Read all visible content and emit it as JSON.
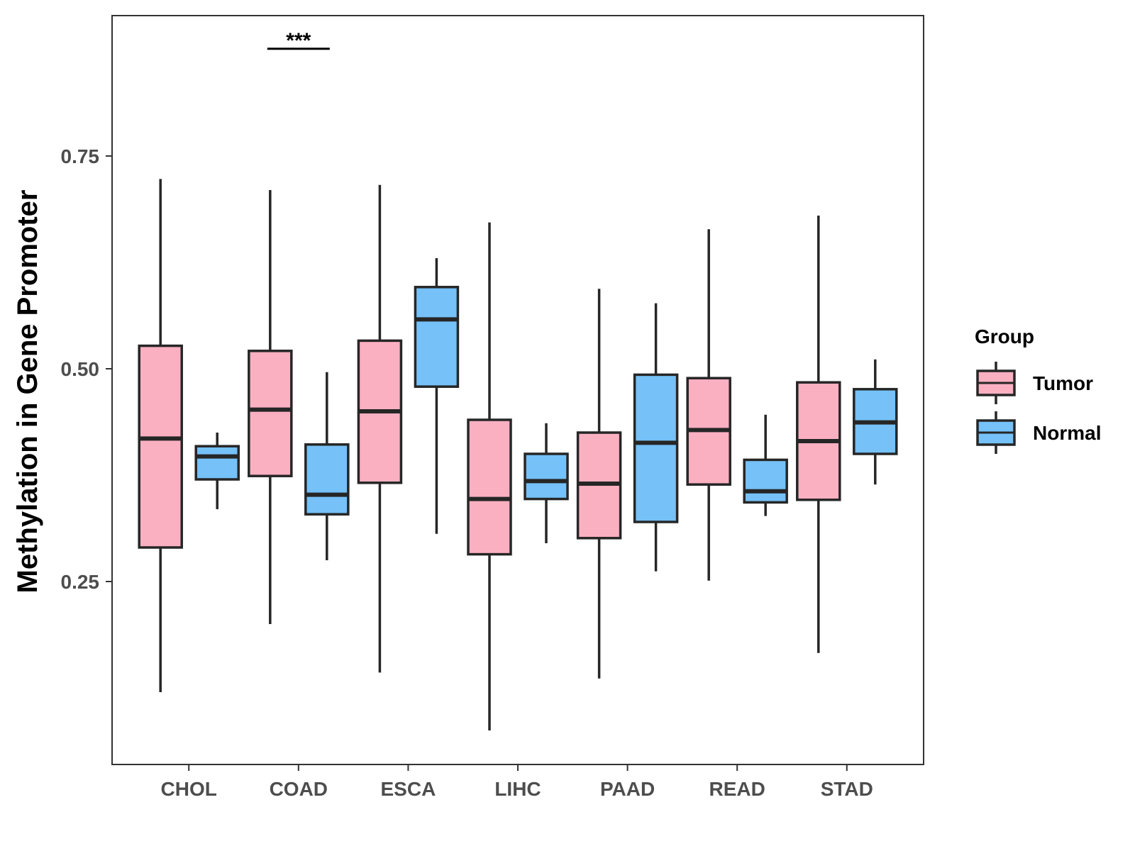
{
  "chart_data": {
    "type": "boxplot",
    "title": "",
    "xlabel": "",
    "ylabel": "Methylation in Gene Promoter",
    "ylim": [
      0.035,
      0.915
    ],
    "yticks": [
      0.25,
      0.5,
      0.75
    ],
    "ytick_labels": [
      "0.25",
      "0.50",
      "0.75"
    ],
    "categories": [
      "CHOL",
      "COAD",
      "ESCA",
      "LIHC",
      "PAAD",
      "READ",
      "STAD"
    ],
    "legend": {
      "title": "Group",
      "position": "right",
      "entries": [
        {
          "name": "Tumor",
          "color": "#FBB0C2"
        },
        {
          "name": "Normal",
          "color": "#75C1F8"
        }
      ]
    },
    "series": [
      {
        "name": "Tumor",
        "color": "#FBB0C2",
        "boxes": [
          {
            "category": "CHOL",
            "min": 0.12,
            "q1": 0.29,
            "median": 0.418,
            "q3": 0.527,
            "max": 0.723
          },
          {
            "category": "COAD",
            "min": 0.2,
            "q1": 0.374,
            "median": 0.452,
            "q3": 0.521,
            "max": 0.71
          },
          {
            "category": "ESCA",
            "min": 0.143,
            "q1": 0.366,
            "median": 0.45,
            "q3": 0.533,
            "max": 0.716
          },
          {
            "category": "LIHC",
            "min": 0.075,
            "q1": 0.282,
            "median": 0.347,
            "q3": 0.44,
            "max": 0.672
          },
          {
            "category": "PAAD",
            "min": 0.136,
            "q1": 0.301,
            "median": 0.365,
            "q3": 0.425,
            "max": 0.594
          },
          {
            "category": "READ",
            "min": 0.251,
            "q1": 0.364,
            "median": 0.428,
            "q3": 0.489,
            "max": 0.664
          },
          {
            "category": "STAD",
            "min": 0.166,
            "q1": 0.346,
            "median": 0.415,
            "q3": 0.484,
            "max": 0.68
          }
        ]
      },
      {
        "name": "Normal",
        "color": "#75C1F8",
        "boxes": [
          {
            "category": "CHOL",
            "min": 0.335,
            "q1": 0.37,
            "median": 0.397,
            "q3": 0.409,
            "max": 0.425
          },
          {
            "category": "COAD",
            "min": 0.275,
            "q1": 0.329,
            "median": 0.352,
            "q3": 0.411,
            "max": 0.496
          },
          {
            "category": "ESCA",
            "min": 0.306,
            "q1": 0.479,
            "median": 0.558,
            "q3": 0.596,
            "max": 0.63
          },
          {
            "category": "LIHC",
            "min": 0.295,
            "q1": 0.347,
            "median": 0.368,
            "q3": 0.4,
            "max": 0.436
          },
          {
            "category": "PAAD",
            "min": 0.262,
            "q1": 0.32,
            "median": 0.413,
            "q3": 0.493,
            "max": 0.577
          },
          {
            "category": "READ",
            "min": 0.327,
            "q1": 0.343,
            "median": 0.356,
            "q3": 0.393,
            "max": 0.446
          },
          {
            "category": "STAD",
            "min": 0.364,
            "q1": 0.4,
            "median": 0.437,
            "q3": 0.476,
            "max": 0.511
          }
        ]
      }
    ],
    "annotations": [
      {
        "category": "COAD",
        "text": "***",
        "y": 0.876
      }
    ],
    "style": {
      "line_color": "#262626",
      "axis_color": "#333333",
      "background": "#FFFFFF"
    }
  }
}
